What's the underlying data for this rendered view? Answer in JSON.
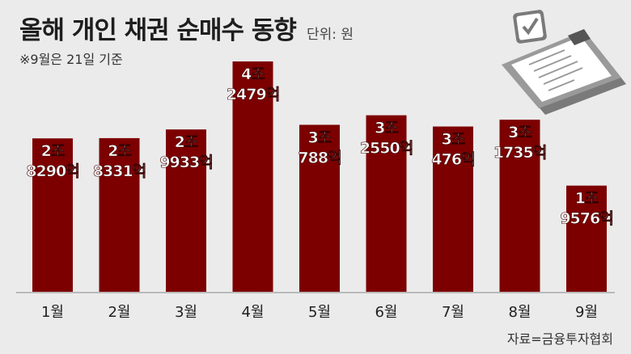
{
  "title": "올해 개인 채권 순매수 동향",
  "unit": "단위: 원",
  "note": "※9월은 21일 기준",
  "source": "자료=금융투자협회",
  "colors": {
    "bar": "#7d0000",
    "background": "#ebebeb",
    "label": "#ffffff",
    "axis": "#888888"
  },
  "icon": "clipboard-checklist-icon",
  "chart_data": {
    "type": "bar",
    "categories": [
      "1월",
      "2월",
      "3월",
      "4월",
      "5월",
      "6월",
      "7월",
      "8월",
      "9월"
    ],
    "values": [
      28290,
      28331,
      29933,
      42479,
      30788,
      32550,
      30476,
      31735,
      19576
    ],
    "value_unit": "억",
    "labels": [
      [
        "2조",
        "8290억"
      ],
      [
        "2조",
        "8331억"
      ],
      [
        "2조",
        "9933억"
      ],
      [
        "4조",
        "2479억"
      ],
      [
        "3조",
        "788억"
      ],
      [
        "3조",
        "2550억"
      ],
      [
        "3조",
        "476억"
      ],
      [
        "3조",
        "1735억"
      ],
      [
        "1조",
        "9576억"
      ]
    ],
    "title": "올해 개인 채권 순매수 동향",
    "xlabel": "",
    "ylabel": "",
    "grid": false,
    "legend": "none"
  }
}
